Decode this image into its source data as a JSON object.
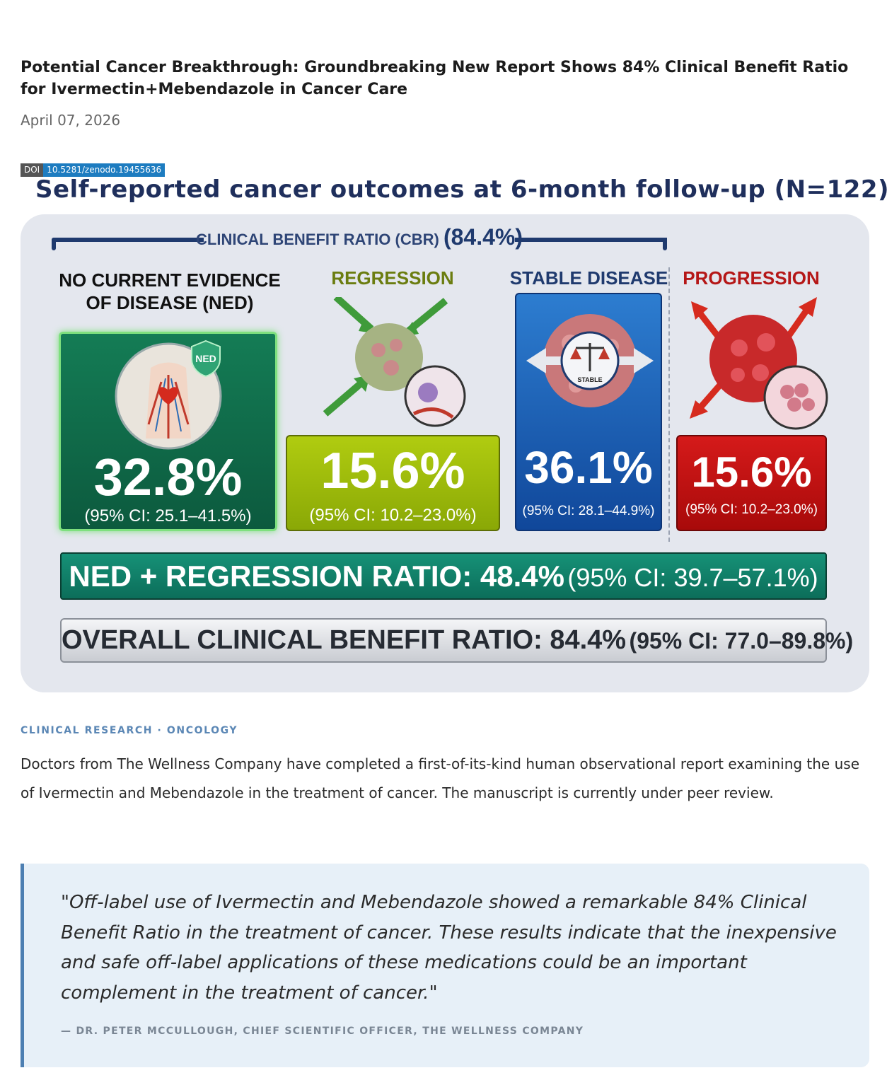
{
  "article": {
    "headline": "Potential Cancer Breakthrough: Groundbreaking New Report Shows 84% Clinical Benefit Ratio for Ivermectin+Mebendazole in Cancer Care",
    "date": "April 07, 2026"
  },
  "doi": {
    "key": "DOI",
    "value": "10.5281/zenodo.19455636"
  },
  "figure": {
    "title": "Self-reported cancer outcomes at 6-month follow-up (N=122)",
    "cbr_label": "CLINICAL BENEFIT RATIO (CBR)",
    "cbr_value": "(84.4%)",
    "ned_shield": "NED",
    "stable_tag": "STABLE",
    "categories": [
      {
        "heading": "NO CURRENT EVIDENCE OF DISEASE (NED)",
        "value": "32.8%",
        "ci": "(95% CI: 25.1–41.5%)",
        "color": "#147c55"
      },
      {
        "heading": "REGRESSION",
        "value": "15.6%",
        "ci": "(95% CI: 10.2–23.0%)",
        "color": "#a3be0c"
      },
      {
        "heading": "STABLE DISEASE",
        "value": "36.1%",
        "ci": "(95% CI: 28.1–44.9%)",
        "color": "#1f64b8"
      },
      {
        "heading": "PROGRESSION",
        "value": "15.6%",
        "ci": "(95% CI: 10.2–23.0%)",
        "color": "#c41111"
      }
    ],
    "ned_regression": {
      "label": "NED + REGRESSION RATIO: 48.4%",
      "ci": "(95% CI: 39.7–57.1%)"
    },
    "overall": {
      "label": "OVERALL CLINICAL BENEFIT RATIO: 84.4%",
      "ci": "(95% CI: 77.0–89.8%)"
    }
  },
  "content": {
    "kicker": "CLINICAL RESEARCH · ONCOLOGY",
    "paragraph": "Doctors from The Wellness Company have completed a first-of-its-kind human observational report examining the use of Ivermectin and Mebendazole in the treatment of cancer. The manuscript is currently under peer review.",
    "quote": "\"Off-label use of Ivermectin and Mebendazole showed a remarkable 84% Clinical Benefit Ratio in the treatment of cancer. These results indicate that the inexpensive and safe off-label applications of these medications could be an important complement in the treatment of cancer.\"",
    "attribution": "— DR. PETER MCCULLOUGH, CHIEF SCIENTIFIC OFFICER, THE WELLNESS COMPANY"
  }
}
